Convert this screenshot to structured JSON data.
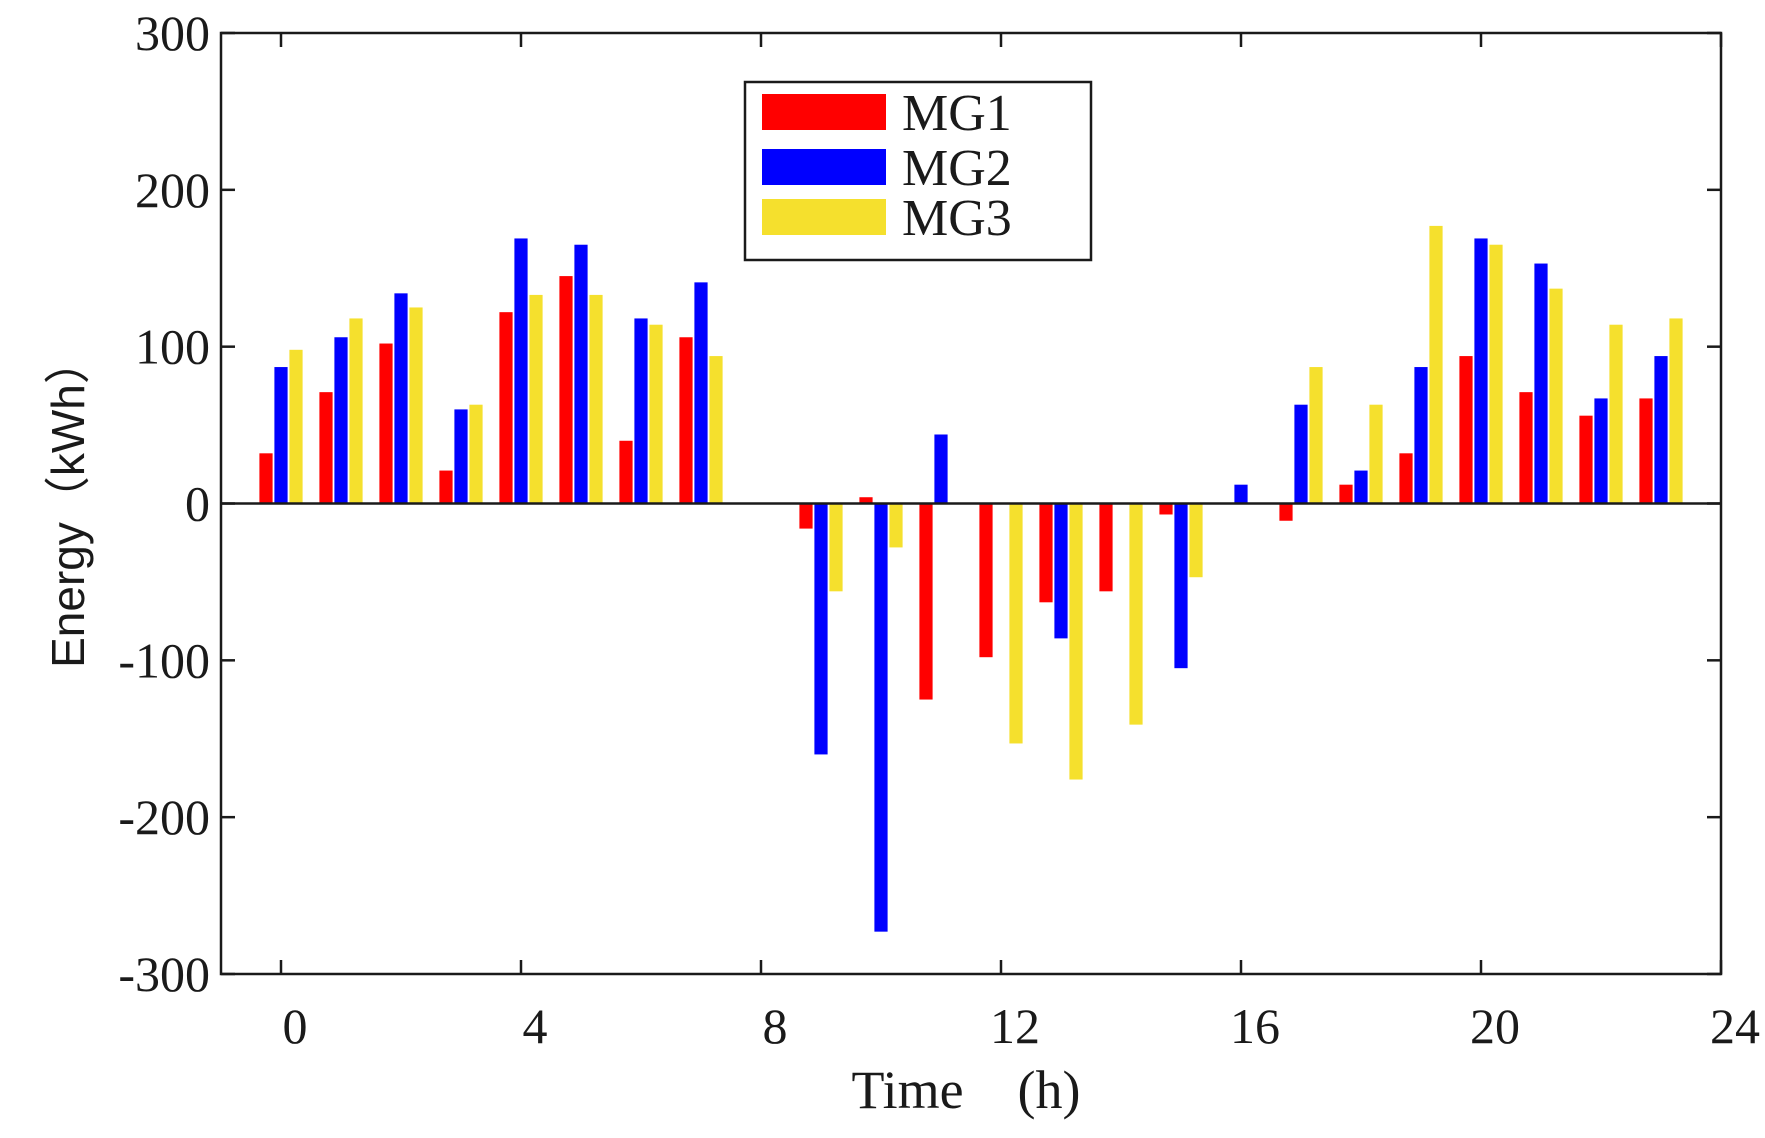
{
  "chart_data": {
    "type": "bar",
    "title": "",
    "xlabel": "Time　(h)",
    "ylabel": "Energy（kWh）",
    "xlim": [
      -1,
      24
    ],
    "ylim": [
      -300,
      300
    ],
    "xticks": [
      "0",
      "4",
      "8",
      "12",
      "16",
      "20",
      "24"
    ],
    "yticks": [
      "300",
      "200",
      "100",
      "0",
      "-100",
      "-200",
      "-300"
    ],
    "categories": [
      0,
      1,
      2,
      3,
      4,
      5,
      6,
      7,
      8,
      9,
      10,
      11,
      12,
      13,
      14,
      15,
      16,
      17,
      18,
      19,
      20,
      21,
      22,
      23
    ],
    "legend_position": "top-center",
    "series": [
      {
        "name": "MG1",
        "color": "#ff0000",
        "values": [
          32,
          71,
          102,
          21,
          122,
          145,
          40,
          106,
          0,
          -16,
          4,
          -125,
          -98,
          -63,
          -56,
          -7,
          0,
          -11,
          12,
          32,
          94,
          71,
          56,
          67
        ]
      },
      {
        "name": "MG2",
        "color": "#0000ff",
        "values": [
          87,
          106,
          134,
          60,
          169,
          165,
          118,
          141,
          0,
          -160,
          -273,
          44,
          0,
          -86,
          0,
          -105,
          12,
          63,
          21,
          87,
          169,
          153,
          67,
          94
        ]
      },
      {
        "name": "MG3",
        "color": "#f5e02d",
        "values": [
          98,
          118,
          125,
          63,
          133,
          133,
          114,
          94,
          0,
          -56,
          -28,
          0,
          -153,
          -176,
          -141,
          -47,
          0,
          87,
          63,
          177,
          165,
          137,
          114,
          118
        ]
      }
    ]
  }
}
